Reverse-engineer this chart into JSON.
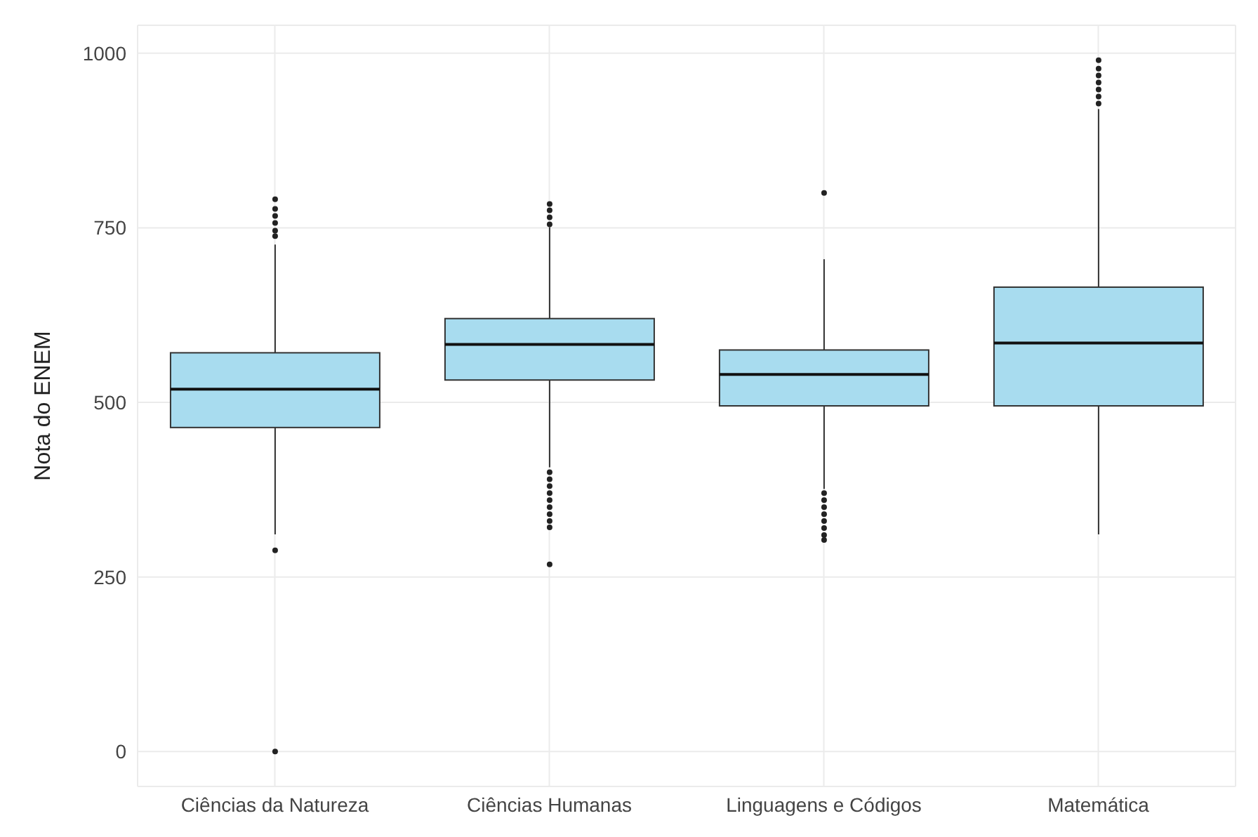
{
  "chart_data": {
    "type": "box",
    "ylabel": "Nota do ENEM",
    "categories": [
      "Ciências da Natureza",
      "Ciências Humanas",
      "Linguagens e Códigos",
      "Matemática"
    ],
    "color": "#a8dcef",
    "boxes": [
      {
        "low": 311,
        "q1": 464,
        "median": 519,
        "q3": 571,
        "high": 726,
        "outliers": [
          0,
          288,
          738,
          746,
          757,
          767,
          777,
          791
        ]
      },
      {
        "low": 407,
        "q1": 532,
        "median": 583,
        "q3": 620,
        "high": 751,
        "outliers": [
          268,
          321,
          330,
          340,
          350,
          360,
          370,
          380,
          390,
          400,
          755,
          765,
          775,
          784
        ]
      },
      {
        "low": 376,
        "q1": 495,
        "median": 540,
        "q3": 575,
        "high": 705,
        "outliers": [
          303,
          310,
          320,
          330,
          340,
          350,
          360,
          370,
          800
        ]
      },
      {
        "low": 311,
        "q1": 495,
        "median": 585,
        "q3": 665,
        "high": 920,
        "outliers": [
          928,
          938,
          948,
          958,
          968,
          978,
          990
        ]
      }
    ],
    "ylim": [
      -50,
      1040
    ],
    "yticks": [
      0,
      250,
      500,
      750,
      1000
    ],
    "grid": true
  }
}
